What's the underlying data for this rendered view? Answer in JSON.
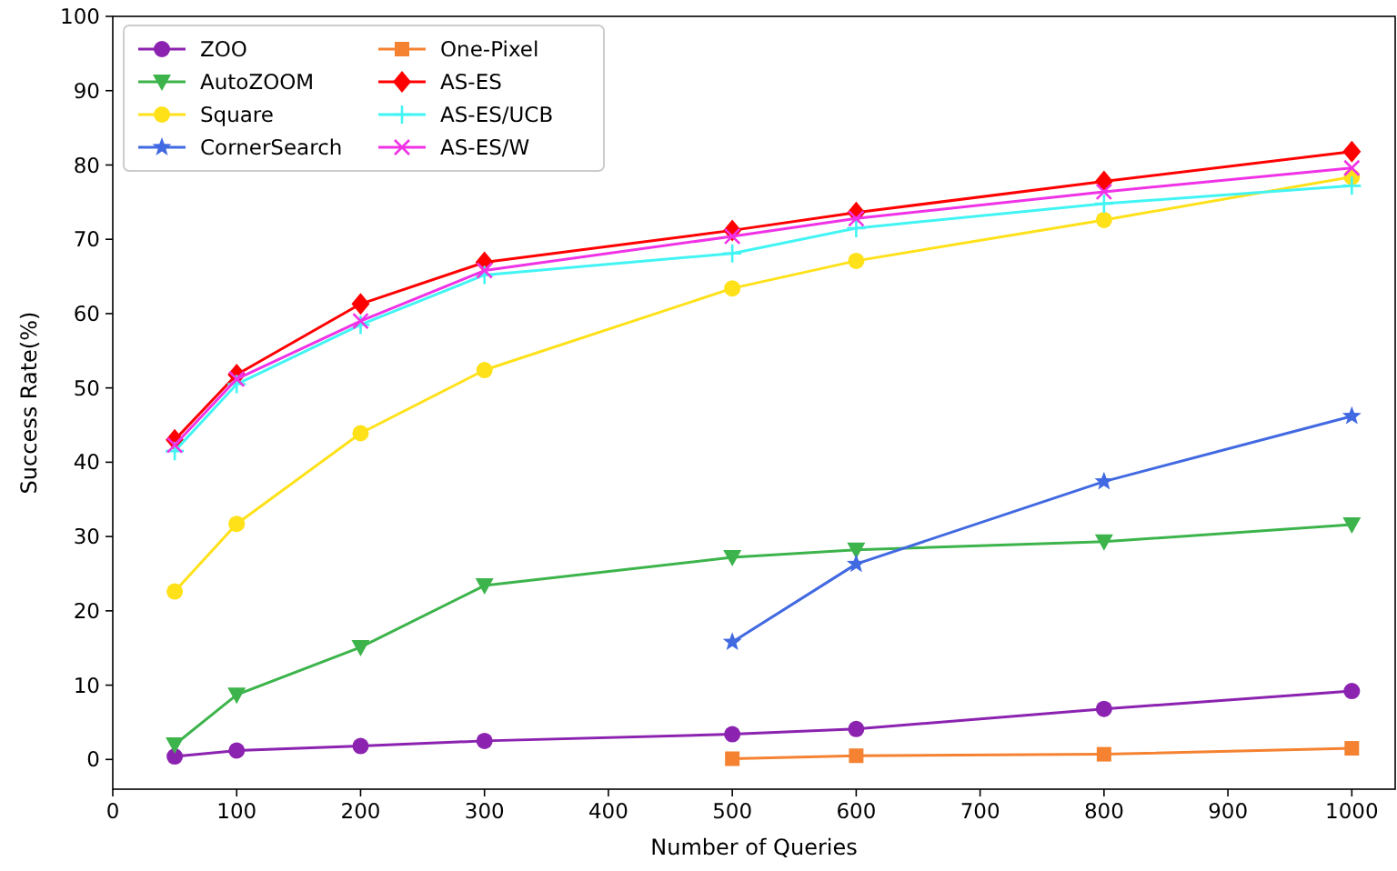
{
  "chart_data": {
    "type": "line",
    "xlabel": "Number of Queries",
    "ylabel": "Success Rate(%)",
    "xlim": [
      0,
      1035
    ],
    "ylim": [
      -4,
      100
    ],
    "xticks": [
      0,
      100,
      200,
      300,
      400,
      500,
      600,
      700,
      800,
      900,
      1000
    ],
    "yticks": [
      0,
      10,
      20,
      30,
      40,
      50,
      60,
      70,
      80,
      90,
      100
    ],
    "grid": false,
    "legend": "top left",
    "line_style": "solid",
    "series": [
      {
        "name": "ZOO",
        "color": "#8b22b0",
        "marker": "circle",
        "x": [
          50,
          100,
          200,
          300,
          500,
          600,
          800,
          1000
        ],
        "values": [
          0.4,
          1.2,
          1.8,
          2.5,
          3.4,
          4.1,
          6.8,
          9.2
        ]
      },
      {
        "name": "AutoZOOM",
        "color": "#3cb44b",
        "marker": "triangle-down",
        "x": [
          50,
          100,
          200,
          300,
          500,
          600,
          800,
          1000
        ],
        "values": [
          2.0,
          8.7,
          15.1,
          23.4,
          27.2,
          28.2,
          29.3,
          31.6
        ]
      },
      {
        "name": "Square",
        "color": "#ffe119",
        "marker": "circle",
        "x": [
          50,
          100,
          200,
          300,
          500,
          600,
          800,
          1000
        ],
        "values": [
          22.6,
          31.7,
          43.9,
          52.4,
          63.4,
          67.1,
          72.6,
          78.4
        ]
      },
      {
        "name": "CornerSearch",
        "color": "#4169e1",
        "marker": "star",
        "x": [
          500,
          600,
          800,
          1000
        ],
        "values": [
          15.8,
          26.3,
          37.4,
          46.2
        ]
      },
      {
        "name": "One-Pixel",
        "color": "#f58231",
        "marker": "square",
        "x": [
          500,
          600,
          800,
          1000
        ],
        "values": [
          0.1,
          0.5,
          0.7,
          1.5
        ]
      },
      {
        "name": "AS-ES",
        "color": "#ff0000",
        "marker": "diamond",
        "x": [
          50,
          100,
          200,
          300,
          500,
          600,
          800,
          1000
        ],
        "values": [
          43.0,
          51.8,
          61.3,
          66.9,
          71.2,
          73.6,
          77.8,
          81.8
        ]
      },
      {
        "name": "AS-ES/UCB",
        "color": "#42f4f4",
        "marker": "plus",
        "x": [
          50,
          100,
          200,
          300,
          500,
          600,
          800,
          1000
        ],
        "values": [
          41.5,
          50.5,
          58.5,
          65.2,
          68.1,
          71.5,
          74.8,
          77.2
        ]
      },
      {
        "name": "AS-ES/W",
        "color": "#f032e6",
        "marker": "cross",
        "x": [
          50,
          100,
          200,
          300,
          500,
          600,
          800,
          1000
        ],
        "values": [
          42.3,
          51.2,
          59.0,
          65.8,
          70.4,
          72.8,
          76.4,
          79.6
        ]
      }
    ]
  }
}
